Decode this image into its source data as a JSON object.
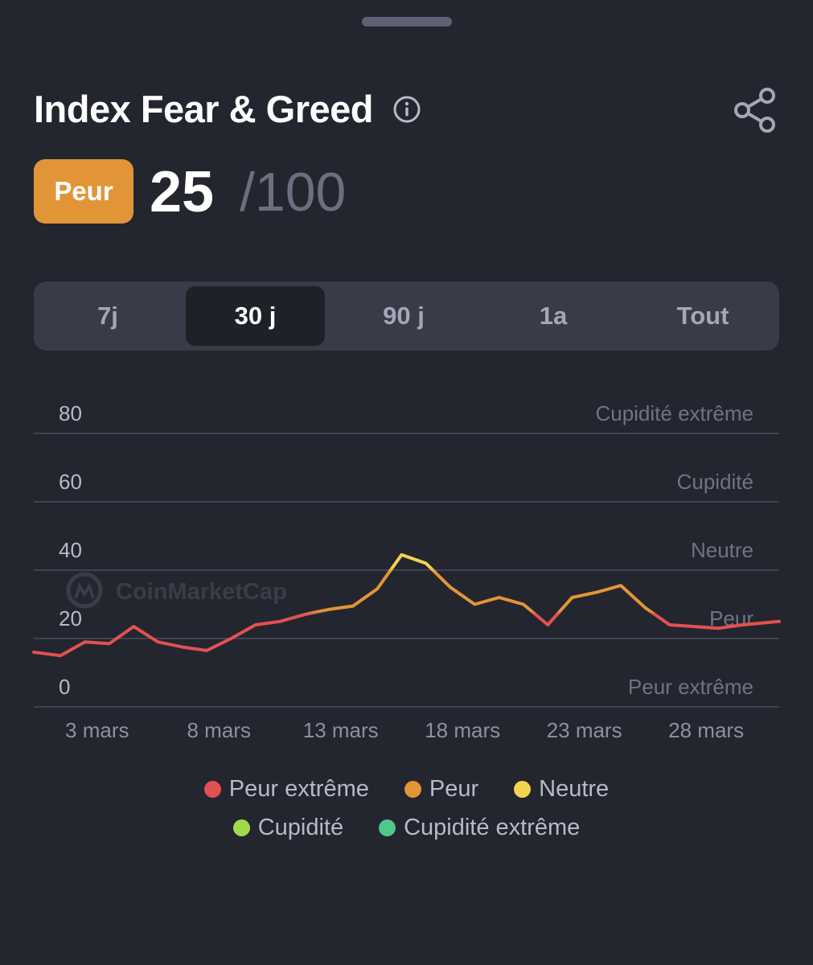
{
  "header": {
    "title": "Index Fear & Greed",
    "info_icon": "info-circle-icon",
    "share_icon": "share-icon"
  },
  "score": {
    "label": "Peur",
    "value": "25",
    "max": "/100",
    "label_color": "#e29536"
  },
  "tabs": [
    {
      "label": "7j",
      "active": false
    },
    {
      "label": "30 j",
      "active": true
    },
    {
      "label": "90 j",
      "active": false
    },
    {
      "label": "1a",
      "active": false
    },
    {
      "label": "Tout",
      "active": false
    }
  ],
  "watermark": "CoinMarketCap",
  "chart_data": {
    "type": "line",
    "y_ticks": [
      0,
      20,
      40,
      60,
      80
    ],
    "zone_labels": [
      "Peur extrême",
      "Peur",
      "Neutre",
      "Cupidité",
      "Cupidité extrême"
    ],
    "x_ticks": [
      "3 mars",
      "8 mars",
      "13 mars",
      "18 mars",
      "23 mars",
      "28 mars"
    ],
    "x_tick_days": [
      3,
      8,
      13,
      18,
      23,
      28
    ],
    "ylim": [
      0,
      80
    ],
    "xlim": [
      0.4,
      31
    ],
    "points": [
      [
        0.4,
        16
      ],
      [
        1.5,
        15
      ],
      [
        2.5,
        19
      ],
      [
        3.5,
        18.5
      ],
      [
        4.5,
        23.5
      ],
      [
        5.5,
        19
      ],
      [
        6.5,
        17.5
      ],
      [
        7.5,
        16.5
      ],
      [
        8.5,
        20
      ],
      [
        9.5,
        24
      ],
      [
        10.5,
        25
      ],
      [
        11.5,
        27
      ],
      [
        12.5,
        28.5
      ],
      [
        13.5,
        29.5
      ],
      [
        14.5,
        34.5
      ],
      [
        15.5,
        44.5
      ],
      [
        16.5,
        42
      ],
      [
        17.5,
        35
      ],
      [
        18.5,
        30
      ],
      [
        19.5,
        32
      ],
      [
        20.5,
        30
      ],
      [
        21.5,
        24
      ],
      [
        22.5,
        32
      ],
      [
        23.5,
        33.5
      ],
      [
        24.5,
        35.5
      ],
      [
        25.5,
        29
      ],
      [
        26.5,
        24
      ],
      [
        27.5,
        23.5
      ],
      [
        28.5,
        23
      ],
      [
        29.5,
        24
      ],
      [
        31,
        25
      ]
    ]
  },
  "legend": [
    {
      "label": "Peur extrême",
      "color": "#e25151"
    },
    {
      "label": "Peur",
      "color": "#e29536"
    },
    {
      "label": "Neutre",
      "color": "#f3d451"
    },
    {
      "label": "Cupidité",
      "color": "#a2d94a"
    },
    {
      "label": "Cupidité extrême",
      "color": "#4fc78d"
    }
  ]
}
